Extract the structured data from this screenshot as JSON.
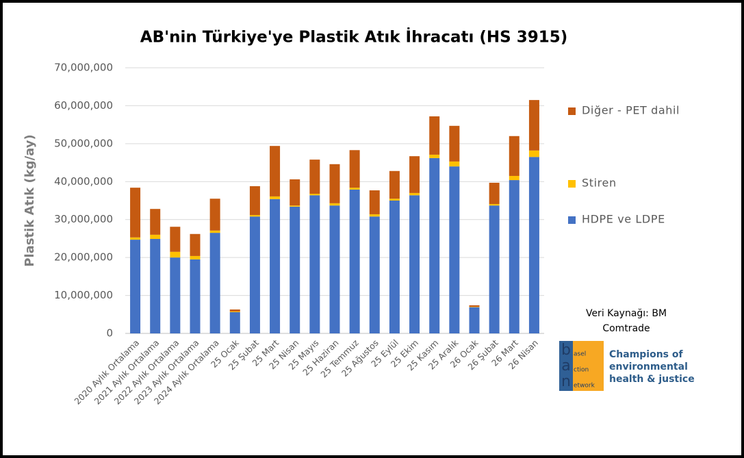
{
  "chart_data": {
    "type": "stacked_bar",
    "title": "AB'nin Türkiye'ye Plastik Atık İhracatı (HS 3915)",
    "y_label": "Plastik Atık (kg/ay)",
    "categories": [
      "2020 Aylık Ortalama",
      "2021 Aylık Ortalama",
      "2022 Aylık Ortalama",
      "2023 Aylık Ortalama",
      "2024 Aylık Ortalama",
      "25 Ocak",
      "25 Şubat",
      "25 Mart",
      "25 Nisan",
      "25 Mayıs",
      "25 Haziran",
      "25 Temmuz",
      "25 Ağustos",
      "25 Eylül",
      "25 Ekim",
      "25 Kasım",
      "25 Aralık",
      "26 Ocak",
      "26 Şubat",
      "26 Mart",
      "26 Nisan"
    ],
    "series": [
      {
        "name": "HDPE ve LDPE",
        "color": "#4472c4",
        "values": [
          24700000,
          24900000,
          20000000,
          19500000,
          26500000,
          5600000,
          30800000,
          35400000,
          33400000,
          36400000,
          33700000,
          37900000,
          30800000,
          35000000,
          36400000,
          46200000,
          44000000,
          6900000,
          33700000,
          40400000,
          46500000
        ]
      },
      {
        "name": "Stiren",
        "color": "#ffc000",
        "values": [
          600000,
          1100000,
          1500000,
          900000,
          600000,
          200000,
          400000,
          700000,
          300000,
          400000,
          600000,
          500000,
          600000,
          500000,
          600000,
          900000,
          1300000,
          100000,
          400000,
          1100000,
          1700000
        ]
      },
      {
        "name": "Diğer - PET dahil",
        "color": "#c55a11",
        "values": [
          13100000,
          6800000,
          6600000,
          5800000,
          8400000,
          500000,
          7600000,
          13300000,
          6900000,
          9000000,
          10300000,
          9900000,
          6300000,
          7300000,
          9700000,
          10100000,
          9400000,
          400000,
          5600000,
          10500000,
          13300000
        ]
      }
    ],
    "ylim": [
      0,
      70000000
    ],
    "yticks": [
      0,
      {
        "value": 10000000,
        "label": "10,000,000"
      },
      {
        "value": 20000000,
        "label": "20,000,000"
      },
      {
        "value": 30000000,
        "label": "30,000,000"
      },
      {
        "value": 40000000,
        "label": "40,000,000"
      },
      {
        "value": 50000000,
        "label": "50,000,000"
      },
      {
        "value": 60000000,
        "label": "60,000,000"
      },
      {
        "value": 70000000,
        "label": "70,000,000"
      }
    ],
    "grid": true,
    "legend": "right",
    "source": [
      "Veri Kaynağı: BM",
      "Comtrade"
    ],
    "logo": {
      "letters": [
        "b",
        "a",
        "n"
      ],
      "words": [
        "asel",
        "ction",
        "etwork"
      ],
      "tagline": [
        "Champions of",
        "environmental",
        "health & justice"
      ]
    }
  }
}
